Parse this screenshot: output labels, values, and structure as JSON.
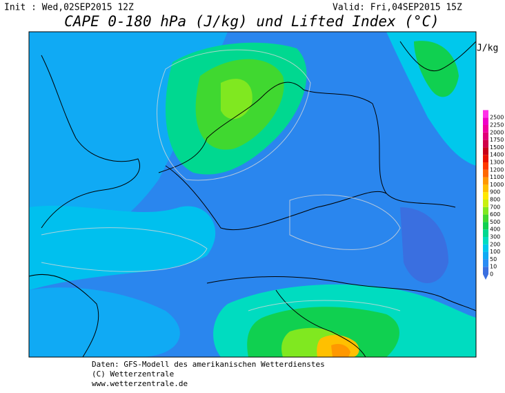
{
  "header": {
    "init": "Init : Wed,02SEP2015 12Z",
    "valid": "Valid: Fri,04SEP2015 15Z",
    "title": "CAPE 0-180 hPa (J/kg) und Lifted Index (°C)"
  },
  "legend": {
    "unit": "J/kg",
    "levels": [
      0,
      10,
      50,
      100,
      200,
      300,
      400,
      500,
      600,
      700,
      800,
      900,
      1000,
      1100,
      1200,
      1300,
      1400,
      1500,
      1750,
      2000,
      2250,
      2500
    ],
    "colors": [
      "#3a6fe0",
      "#2a8cf4",
      "#10aaf4",
      "#00c8ec",
      "#00dcc0",
      "#00d890",
      "#10d050",
      "#40d830",
      "#80e820",
      "#c8f010",
      "#ffe800",
      "#ffc000",
      "#ff9800",
      "#ff6800",
      "#ff3800",
      "#e81000",
      "#c80018",
      "#d00048",
      "#e00078",
      "#f000a0",
      "#f000c8",
      "#ff30e8"
    ]
  },
  "footer": {
    "line1": "Daten: GFS-Modell des amerikanischen Wetterdienstes",
    "line2": "(C) Wetterzentrale",
    "line3": "www.wetterzentrale.de"
  }
}
